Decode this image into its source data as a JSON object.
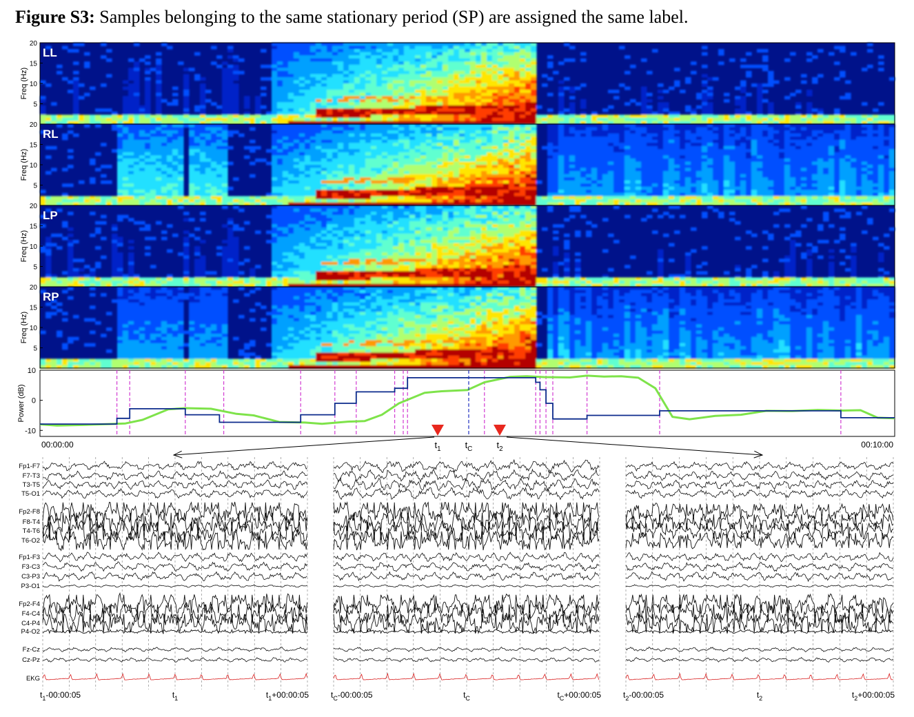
{
  "caption": {
    "bold": "Figure S3:",
    "text": " Samples belonging to the same stationary period (SP) are assigned the same label."
  },
  "chart_data": [
    {
      "type": "heatmap",
      "panels": [
        "LL",
        "RL",
        "LP",
        "RP"
      ],
      "ylabel": "Freq (Hz)",
      "yticks": [
        5,
        10,
        15,
        20
      ],
      "ylim": [
        0,
        20
      ],
      "colormap": "jet",
      "seizure_span_fraction": [
        0.29,
        0.58
      ]
    },
    {
      "type": "line",
      "ylabel": "Power (dB)",
      "yticks": [
        -10,
        0,
        10
      ],
      "ylim": [
        -12,
        10
      ],
      "xlim_labels": [
        "00:00:00",
        "00:10:00"
      ],
      "x_fraction": [
        0,
        0.02,
        0.05,
        0.08,
        0.1,
        0.12,
        0.15,
        0.17,
        0.2,
        0.23,
        0.25,
        0.28,
        0.31,
        0.33,
        0.36,
        0.38,
        0.4,
        0.42,
        0.45,
        0.47,
        0.5,
        0.52,
        0.55,
        0.57,
        0.59,
        0.62,
        0.64,
        0.66,
        0.68,
        0.7,
        0.72,
        0.74,
        0.76,
        0.79,
        0.82,
        0.85,
        0.88,
        0.91,
        0.94,
        0.96,
        0.98,
        1.0
      ],
      "y_db": [
        -8.0,
        -8.4,
        -8.2,
        -7.9,
        -7.7,
        -6.5,
        -3.0,
        -2.6,
        -2.8,
        -4.5,
        -5.0,
        -7.2,
        -7.4,
        -7.8,
        -7.1,
        -6.9,
        -4.8,
        -1.0,
        2.5,
        3.0,
        3.4,
        6.0,
        7.8,
        8.0,
        7.7,
        7.6,
        8.2,
        7.9,
        8.0,
        7.5,
        4.0,
        -5.5,
        -6.3,
        -5.2,
        -4.8,
        -3.5,
        -3.6,
        -3.2,
        -3.4,
        -3.3,
        -5.8,
        -6.0
      ],
      "segments": [
        {
          "from": 0.0,
          "to": 0.09,
          "level": -7.9
        },
        {
          "from": 0.09,
          "to": 0.105,
          "level": -6.0
        },
        {
          "from": 0.105,
          "to": 0.17,
          "level": -2.8
        },
        {
          "from": 0.17,
          "to": 0.21,
          "level": -4.8
        },
        {
          "from": 0.21,
          "to": 0.305,
          "level": -7.3
        },
        {
          "from": 0.305,
          "to": 0.345,
          "level": -4.8
        },
        {
          "from": 0.345,
          "to": 0.37,
          "level": -1.0
        },
        {
          "from": 0.37,
          "to": 0.415,
          "level": 2.8
        },
        {
          "from": 0.415,
          "to": 0.43,
          "level": 4.0
        },
        {
          "from": 0.43,
          "to": 0.58,
          "level": 7.5
        },
        {
          "from": 0.58,
          "to": 0.585,
          "level": 6.0
        },
        {
          "from": 0.585,
          "to": 0.592,
          "level": 3.5
        },
        {
          "from": 0.592,
          "to": 0.6,
          "level": -1.0
        },
        {
          "from": 0.6,
          "to": 0.64,
          "level": -6.2
        },
        {
          "from": 0.64,
          "to": 0.725,
          "level": -5.0
        },
        {
          "from": 0.725,
          "to": 0.937,
          "level": -3.5
        },
        {
          "from": 0.937,
          "to": 1.0,
          "level": -5.8
        }
      ],
      "boundaries": [
        0.09,
        0.105,
        0.17,
        0.215,
        0.305,
        0.345,
        0.37,
        0.415,
        0.425,
        0.43,
        0.52,
        0.58,
        0.585,
        0.592,
        0.6,
        0.64,
        0.725,
        0.937
      ],
      "markers": {
        "t1_label": "t",
        "t1_sub": "1",
        "tc_label": "t",
        "tc_sub": "C",
        "t2_label": "t",
        "t2_sub": "2",
        "t1_fraction": 0.465,
        "tc_fraction": 0.505,
        "t2_fraction": 0.54
      }
    },
    {
      "type": "line",
      "name": "EEG traces",
      "channel_groups": [
        [
          "Fp1-F7",
          "F7-T3",
          "T3-T5",
          "T5-O1"
        ],
        [
          "Fp2-F8",
          "F8-T4",
          "T4-T6",
          "T6-O2"
        ],
        [
          "Fp1-F3",
          "F3-C3",
          "C3-P3",
          "P3-O1"
        ],
        [
          "Fp2-F4",
          "F4-C4",
          "C4-P4",
          "P4-O2"
        ],
        [
          "Fz-Cz",
          "Cz-Pz"
        ],
        [
          "EKG"
        ]
      ],
      "windows": [
        {
          "left": {
            "base": "t",
            "sub": "1",
            "suffix": "-00:00:05"
          },
          "center": {
            "base": "t",
            "sub": "1",
            "suffix": ""
          },
          "right": {
            "base": "t",
            "sub": "1",
            "suffix": "+00:00:05"
          }
        },
        {
          "left": {
            "base": "t",
            "sub": "C",
            "suffix": "-00:00:05"
          },
          "center": {
            "base": "t",
            "sub": "C",
            "suffix": ""
          },
          "right": {
            "base": "t",
            "sub": "C",
            "suffix": "+00:00:05"
          }
        },
        {
          "left": {
            "base": "t",
            "sub": "2",
            "suffix": "-00:00:05"
          },
          "center": {
            "base": "t",
            "sub": "2",
            "suffix": ""
          },
          "right": {
            "base": "t",
            "sub": "2",
            "suffix": "+00:00:05"
          }
        }
      ]
    }
  ],
  "colors": {
    "background_spectrogram": "#00128a",
    "power_raw": "#7ee34a",
    "power_segments": "#0b2a8c",
    "boundary": "#d23ad2",
    "marker": "#e8281e",
    "ekg": "#d91e1e",
    "trace": "#111111"
  }
}
